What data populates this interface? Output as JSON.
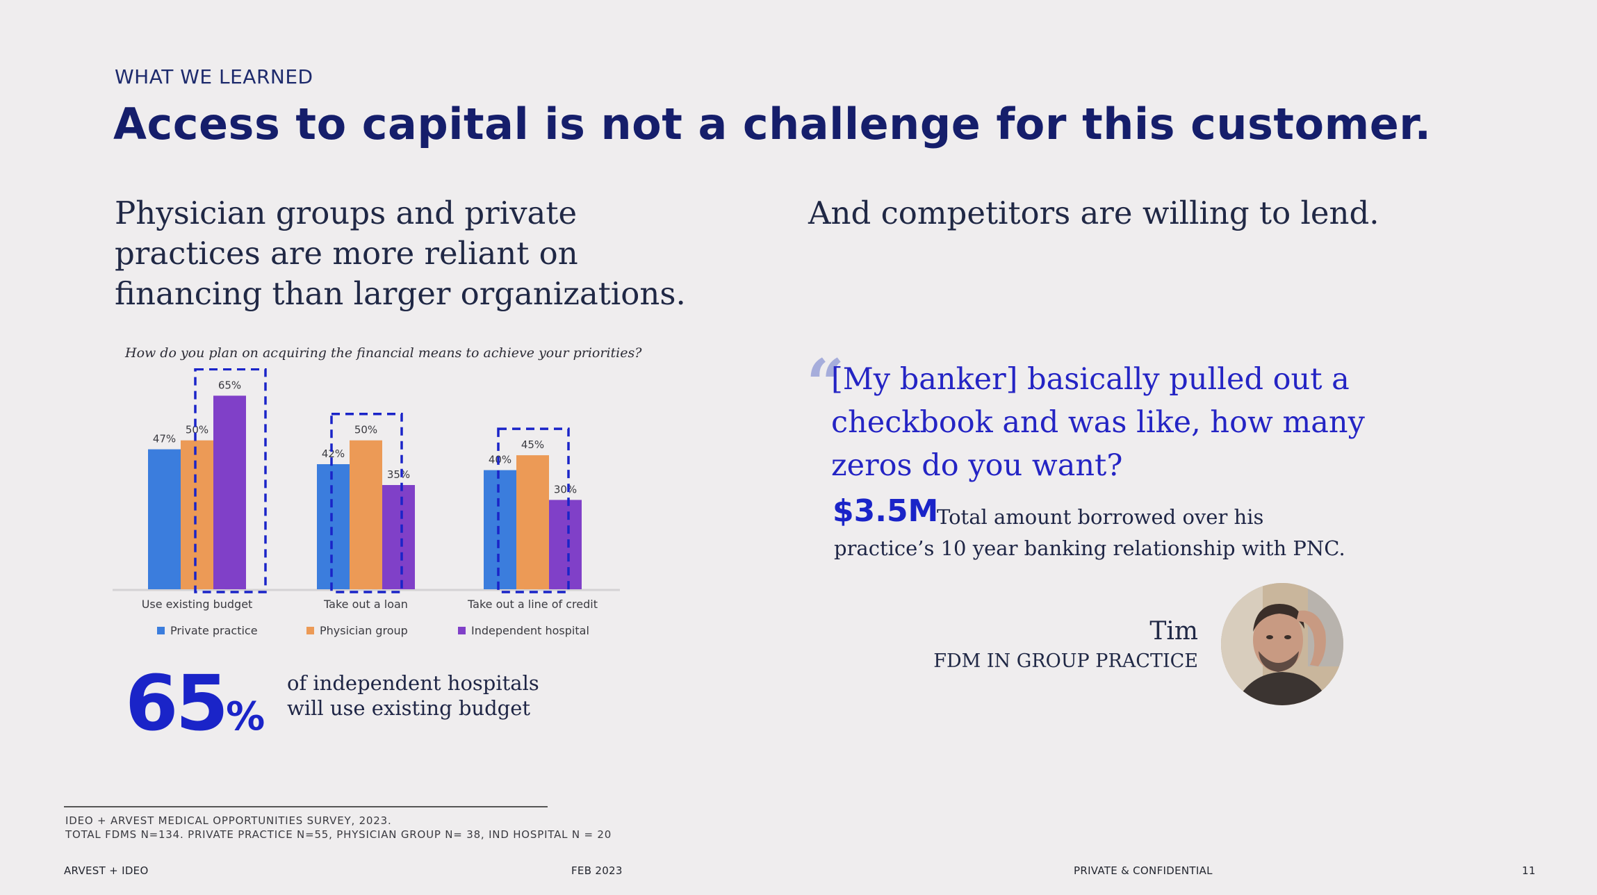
{
  "header": {
    "eyebrow": "WHAT WE LEARNED",
    "headline": "Access to capital is not a challenge for this customer."
  },
  "left": {
    "subhead": "Physician groups and private practices are more reliant on financing than larger organizations.",
    "question": "How do you plan on acquiring the financial means to achieve your priorities?",
    "stat_value": "65",
    "stat_unit": "%",
    "stat_caption": "of independent hospitals will use existing budget"
  },
  "right": {
    "subhead": "And competitors are willing to lend.",
    "quote_mark": "“",
    "quote": "[My banker] basically pulled out a checkbook and was like, how many zeros do you want?",
    "amount": "$3.5M",
    "amount_text": "Total amount borrowed over his practice’s 10 year banking relationship with PNC.",
    "person_name": "Tim",
    "person_role": "FDM IN GROUP PRACTICE"
  },
  "chart_data": {
    "type": "bar",
    "title": "How do you plan on acquiring the financial means to achieve your priorities?",
    "categories": [
      "Use existing budget",
      "Take out a loan",
      "Take out a line of credit"
    ],
    "series": [
      {
        "name": "Private practice",
        "values": [
          47,
          42,
          40
        ],
        "labels": [
          "47%",
          "42%",
          "40%"
        ],
        "color": "#3b7ddd"
      },
      {
        "name": "Physician group",
        "values": [
          50,
          50,
          45
        ],
        "labels": [
          "50%",
          "50%",
          "45%"
        ],
        "color": "#ec9a56"
      },
      {
        "name": "Independent hospital",
        "values": [
          65,
          35,
          30
        ],
        "labels": [
          "65%",
          "35%",
          "30%"
        ],
        "color": "#8040c8"
      }
    ],
    "ylim": [
      0,
      70
    ],
    "grid": false,
    "legend": "bottom",
    "highlight_color": "#1a24c8",
    "highlights": [
      {
        "category": "Use existing budget",
        "series": "Independent hospital"
      },
      {
        "category": "Take out a loan",
        "series": "Physician group"
      },
      {
        "category": "Take out a line of credit",
        "series": "Physician group"
      }
    ]
  },
  "footnote": {
    "line1": "IDEO + ARVEST MEDICAL OPPORTUNITIES SURVEY, 2023.",
    "line2": "TOTAL FDMS N=134. PRIVATE PRACTICE N=55, PHYSICIAN GROUP N= 38, IND HOSPITAL N = 20"
  },
  "footer": {
    "left": "ARVEST + IDEO",
    "date": "FEB 2023",
    "confidential": "PRIVATE & CONFIDENTIAL",
    "page": "11"
  }
}
